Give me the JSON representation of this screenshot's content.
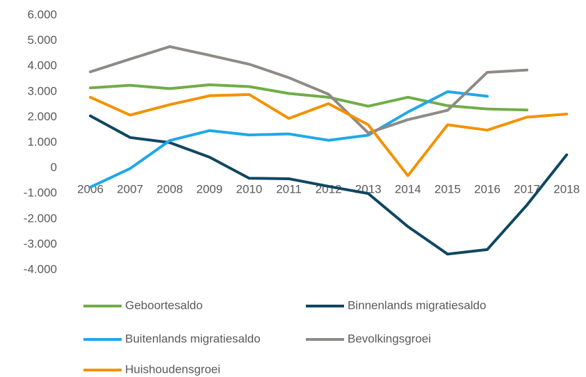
{
  "chart_data": {
    "type": "line",
    "categories": [
      "2006",
      "2007",
      "2008",
      "2009",
      "2010",
      "2011",
      "2012",
      "2013",
      "2014",
      "2015",
      "2016",
      "2017",
      "2018"
    ],
    "series": [
      {
        "name": "Geboortesaldo",
        "color": "#70ad47",
        "values": [
          3150,
          3250,
          3120,
          3270,
          3200,
          2930,
          2780,
          2430,
          2780,
          2450,
          2320,
          2280,
          null
        ]
      },
      {
        "name": "Binnenlands migratiesaldo",
        "color": "#0f4761",
        "values": [
          2050,
          1200,
          1000,
          430,
          -400,
          -420,
          -720,
          -1000,
          -2300,
          -3380,
          -3200,
          -1450,
          520
        ]
      },
      {
        "name": "Buitenlands migratiesaldo",
        "color": "#1fa8e8",
        "values": [
          -750,
          -20,
          1080,
          1470,
          1300,
          1340,
          1090,
          1290,
          2200,
          3000,
          2820,
          null,
          null
        ]
      },
      {
        "name": "Bevolkingsgroei",
        "color": "#8f8a85",
        "values": [
          3780,
          4280,
          4770,
          4430,
          4080,
          3550,
          2900,
          1380,
          1900,
          2270,
          3760,
          3850,
          null
        ]
      },
      {
        "name": "Huishoudensgroei",
        "color": "#f39200",
        "values": [
          2780,
          2080,
          2490,
          2840,
          2890,
          1950,
          2530,
          1700,
          -300,
          1700,
          1490,
          2000,
          2120
        ]
      }
    ],
    "ylim": [
      -4000,
      6000
    ],
    "yticks": [
      {
        "value": -4000,
        "label": "-4.000"
      },
      {
        "value": -3000,
        "label": "-3.000"
      },
      {
        "value": -2000,
        "label": "-2.000"
      },
      {
        "value": -1000,
        "label": "-1.000"
      },
      0,
      {
        "value": 1000,
        "label": "1.000"
      },
      {
        "value": 2000,
        "label": "2.000"
      },
      {
        "value": 3000,
        "label": "3.000"
      },
      {
        "value": 4000,
        "label": "4.000"
      },
      {
        "value": 5000,
        "label": "5.000"
      },
      {
        "value": 6000,
        "label": "6.000"
      }
    ],
    "grid": false,
    "legend": "bottom"
  }
}
